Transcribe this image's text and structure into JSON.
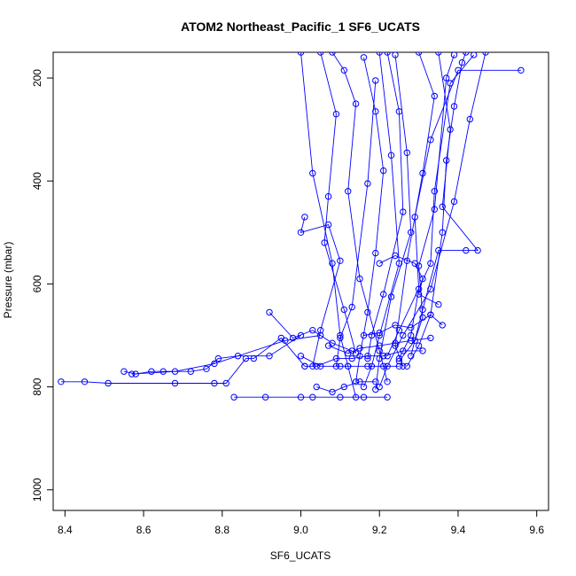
{
  "chart_data": {
    "type": "line",
    "title": "ATOM2 Northeast_Pacific_1 SF6_UCATS",
    "xlabel": "SF6_UCATS",
    "ylabel": "Pressure (mbar)",
    "xlim": [
      8.37,
      9.63
    ],
    "ylim": [
      150,
      1040
    ],
    "y_reversed": true,
    "x_ticks": [
      8.4,
      8.6,
      8.8,
      9.0,
      9.2,
      9.4,
      9.6
    ],
    "x_tick_labels": [
      "8.4",
      "8.6",
      "8.8",
      "9.0",
      "9.2",
      "9.4",
      "9.6"
    ],
    "y_ticks": [
      200,
      400,
      600,
      800,
      1000
    ],
    "y_tick_labels": [
      "200",
      "400",
      "600",
      "800",
      "1000"
    ],
    "grid": false,
    "legend": "none",
    "colors": {
      "series": "#0000ff",
      "axis": "#000000"
    },
    "series": [
      {
        "points": [
          {
            "x": 9.0,
            "y": 150
          },
          {
            "x": 9.03,
            "y": 385
          },
          {
            "x": 9.08,
            "y": 560
          },
          {
            "x": 9.1,
            "y": 700
          },
          {
            "x": 9.12,
            "y": 760
          },
          {
            "x": 9.14,
            "y": 820
          }
        ]
      },
      {
        "points": [
          {
            "x": 9.2,
            "y": 150
          },
          {
            "x": 9.23,
            "y": 350
          },
          {
            "x": 9.25,
            "y": 560
          },
          {
            "x": 9.2,
            "y": 700
          },
          {
            "x": 9.18,
            "y": 760
          },
          {
            "x": 9.16,
            "y": 800
          }
        ]
      },
      {
        "points": [
          {
            "x": 9.47,
            "y": 150
          },
          {
            "x": 9.43,
            "y": 280
          },
          {
            "x": 9.39,
            "y": 440
          },
          {
            "x": 9.33,
            "y": 610
          },
          {
            "x": 9.26,
            "y": 700
          },
          {
            "x": 9.22,
            "y": 760
          },
          {
            "x": 9.2,
            "y": 800
          }
        ]
      },
      {
        "points": [
          {
            "x": 9.08,
            "y": 150
          },
          {
            "x": 9.11,
            "y": 185
          },
          {
            "x": 9.14,
            "y": 250
          },
          {
            "x": 9.12,
            "y": 420
          },
          {
            "x": 9.15,
            "y": 590
          },
          {
            "x": 9.2,
            "y": 730
          },
          {
            "x": 9.22,
            "y": 790
          }
        ]
      },
      {
        "points": [
          {
            "x": 9.3,
            "y": 150
          },
          {
            "x": 9.34,
            "y": 235
          },
          {
            "x": 9.31,
            "y": 385
          },
          {
            "x": 9.27,
            "y": 555
          },
          {
            "x": 9.24,
            "y": 720
          },
          {
            "x": 9.26,
            "y": 760
          }
        ]
      },
      {
        "points": [
          {
            "x": 9.56,
            "y": 185
          },
          {
            "x": 9.4,
            "y": 185
          },
          {
            "x": 9.33,
            "y": 320
          },
          {
            "x": 9.29,
            "y": 470
          },
          {
            "x": 9.3,
            "y": 610
          },
          {
            "x": 9.28,
            "y": 700
          },
          {
            "x": 9.25,
            "y": 745
          }
        ]
      },
      {
        "points": [
          {
            "x": 9.16,
            "y": 160
          },
          {
            "x": 9.19,
            "y": 265
          },
          {
            "x": 9.21,
            "y": 380
          },
          {
            "x": 9.19,
            "y": 540
          },
          {
            "x": 9.17,
            "y": 655
          },
          {
            "x": 9.15,
            "y": 740
          },
          {
            "x": 9.14,
            "y": 790
          }
        ]
      },
      {
        "points": [
          {
            "x": 9.42,
            "y": 150
          },
          {
            "x": 9.41,
            "y": 170
          },
          {
            "x": 9.39,
            "y": 255
          },
          {
            "x": 9.37,
            "y": 360
          },
          {
            "x": 9.36,
            "y": 500
          },
          {
            "x": 9.33,
            "y": 660
          },
          {
            "x": 9.3,
            "y": 720
          },
          {
            "x": 9.27,
            "y": 760
          }
        ]
      },
      {
        "points": [
          {
            "x": 9.22,
            "y": 150
          },
          {
            "x": 9.25,
            "y": 265
          },
          {
            "x": 9.26,
            "y": 460
          },
          {
            "x": 9.21,
            "y": 620
          },
          {
            "x": 9.18,
            "y": 700
          },
          {
            "x": 9.17,
            "y": 745
          }
        ]
      },
      {
        "points": [
          {
            "x": 9.05,
            "y": 150
          },
          {
            "x": 9.09,
            "y": 270
          },
          {
            "x": 9.07,
            "y": 430
          },
          {
            "x": 9.06,
            "y": 520
          },
          {
            "x": 9.11,
            "y": 650
          },
          {
            "x": 9.14,
            "y": 735
          }
        ]
      },
      {
        "points": [
          {
            "x": 9.35,
            "y": 150
          },
          {
            "x": 9.38,
            "y": 300
          },
          {
            "x": 9.36,
            "y": 450
          },
          {
            "x": 9.45,
            "y": 535
          },
          {
            "x": 9.42,
            "y": 535
          },
          {
            "x": 9.35,
            "y": 535
          },
          {
            "x": 9.31,
            "y": 650
          },
          {
            "x": 9.28,
            "y": 740
          }
        ]
      },
      {
        "points": [
          {
            "x": 9.24,
            "y": 155
          },
          {
            "x": 9.27,
            "y": 345
          },
          {
            "x": 9.28,
            "y": 500
          },
          {
            "x": 9.23,
            "y": 625
          },
          {
            "x": 9.2,
            "y": 745
          },
          {
            "x": 9.19,
            "y": 805
          }
        ]
      },
      {
        "points": [
          {
            "x": 9.01,
            "y": 470
          },
          {
            "x": 9.0,
            "y": 500
          },
          {
            "x": 9.07,
            "y": 485
          },
          {
            "x": 9.1,
            "y": 555
          },
          {
            "x": 9.05,
            "y": 690
          },
          {
            "x": 9.03,
            "y": 760
          }
        ]
      },
      {
        "points": [
          {
            "x": 9.19,
            "y": 205
          },
          {
            "x": 9.17,
            "y": 405
          },
          {
            "x": 9.13,
            "y": 645
          },
          {
            "x": 9.1,
            "y": 705
          },
          {
            "x": 9.09,
            "y": 760
          }
        ]
      },
      {
        "points": [
          {
            "x": 9.44,
            "y": 155
          },
          {
            "x": 9.38,
            "y": 210
          },
          {
            "x": 9.34,
            "y": 420
          },
          {
            "x": 9.33,
            "y": 560
          },
          {
            "x": 9.25,
            "y": 690
          },
          {
            "x": 9.22,
            "y": 740
          }
        ]
      },
      {
        "points": [
          {
            "x": 9.39,
            "y": 155
          },
          {
            "x": 9.37,
            "y": 200
          },
          {
            "x": 9.34,
            "y": 455
          },
          {
            "x": 9.3,
            "y": 565
          },
          {
            "x": 9.31,
            "y": 665
          },
          {
            "x": 9.29,
            "y": 710
          },
          {
            "x": 9.25,
            "y": 750
          }
        ]
      },
      {
        "points": [
          {
            "x": 8.92,
            "y": 655
          },
          {
            "x": 8.98,
            "y": 705
          },
          {
            "x": 9.03,
            "y": 690
          },
          {
            "x": 9.08,
            "y": 715
          },
          {
            "x": 9.13,
            "y": 730
          }
        ]
      },
      {
        "points": [
          {
            "x": 8.39,
            "y": 790
          },
          {
            "x": 8.45,
            "y": 790
          },
          {
            "x": 8.51,
            "y": 793
          },
          {
            "x": 8.68,
            "y": 793
          },
          {
            "x": 8.78,
            "y": 793
          },
          {
            "x": 8.81,
            "y": 793
          },
          {
            "x": 8.86,
            "y": 745
          },
          {
            "x": 8.88,
            "y": 745
          },
          {
            "x": 8.95,
            "y": 705
          },
          {
            "x": 9.01,
            "y": 760
          }
        ]
      },
      {
        "points": [
          {
            "x": 8.55,
            "y": 770
          },
          {
            "x": 8.58,
            "y": 775
          },
          {
            "x": 8.62,
            "y": 770
          },
          {
            "x": 8.65,
            "y": 770
          },
          {
            "x": 8.72,
            "y": 770
          },
          {
            "x": 8.76,
            "y": 765
          },
          {
            "x": 8.79,
            "y": 745
          },
          {
            "x": 8.84,
            "y": 740
          },
          {
            "x": 8.92,
            "y": 740
          },
          {
            "x": 9.0,
            "y": 700
          }
        ]
      },
      {
        "points": [
          {
            "x": 8.57,
            "y": 775
          },
          {
            "x": 8.68,
            "y": 770
          },
          {
            "x": 8.78,
            "y": 755
          },
          {
            "x": 8.96,
            "y": 710
          },
          {
            "x": 9.05,
            "y": 700
          }
        ]
      },
      {
        "points": [
          {
            "x": 8.83,
            "y": 820
          },
          {
            "x": 8.91,
            "y": 820
          },
          {
            "x": 9.0,
            "y": 820
          },
          {
            "x": 9.03,
            "y": 820
          },
          {
            "x": 9.1,
            "y": 820
          },
          {
            "x": 9.16,
            "y": 820
          },
          {
            "x": 9.22,
            "y": 820
          }
        ]
      },
      {
        "points": [
          {
            "x": 9.0,
            "y": 740
          },
          {
            "x": 9.05,
            "y": 760
          },
          {
            "x": 9.1,
            "y": 760
          },
          {
            "x": 9.12,
            "y": 760
          },
          {
            "x": 9.17,
            "y": 760
          },
          {
            "x": 9.21,
            "y": 760
          },
          {
            "x": 9.25,
            "y": 760
          }
        ]
      },
      {
        "points": [
          {
            "x": 9.01,
            "y": 760
          },
          {
            "x": 9.04,
            "y": 760
          },
          {
            "x": 9.09,
            "y": 745
          },
          {
            "x": 9.13,
            "y": 745
          },
          {
            "x": 9.17,
            "y": 740
          },
          {
            "x": 9.21,
            "y": 740
          },
          {
            "x": 9.26,
            "y": 730
          },
          {
            "x": 9.31,
            "y": 730
          }
        ]
      },
      {
        "points": [
          {
            "x": 9.07,
            "y": 720
          },
          {
            "x": 9.12,
            "y": 735
          },
          {
            "x": 9.15,
            "y": 725
          },
          {
            "x": 9.2,
            "y": 720
          },
          {
            "x": 9.24,
            "y": 715
          },
          {
            "x": 9.28,
            "y": 710
          },
          {
            "x": 9.33,
            "y": 705
          }
        ]
      },
      {
        "points": [
          {
            "x": 9.04,
            "y": 800
          },
          {
            "x": 9.08,
            "y": 810
          },
          {
            "x": 9.11,
            "y": 800
          },
          {
            "x": 9.15,
            "y": 790
          },
          {
            "x": 9.19,
            "y": 790
          }
        ]
      },
      {
        "points": [
          {
            "x": 9.2,
            "y": 560
          },
          {
            "x": 9.24,
            "y": 545
          },
          {
            "x": 9.29,
            "y": 560
          },
          {
            "x": 9.31,
            "y": 590
          },
          {
            "x": 9.3,
            "y": 620
          },
          {
            "x": 9.35,
            "y": 640
          }
        ]
      },
      {
        "points": [
          {
            "x": 9.16,
            "y": 700
          },
          {
            "x": 9.2,
            "y": 695
          },
          {
            "x": 9.24,
            "y": 680
          },
          {
            "x": 9.28,
            "y": 685
          },
          {
            "x": 9.33,
            "y": 660
          },
          {
            "x": 9.36,
            "y": 680
          }
        ]
      }
    ]
  }
}
